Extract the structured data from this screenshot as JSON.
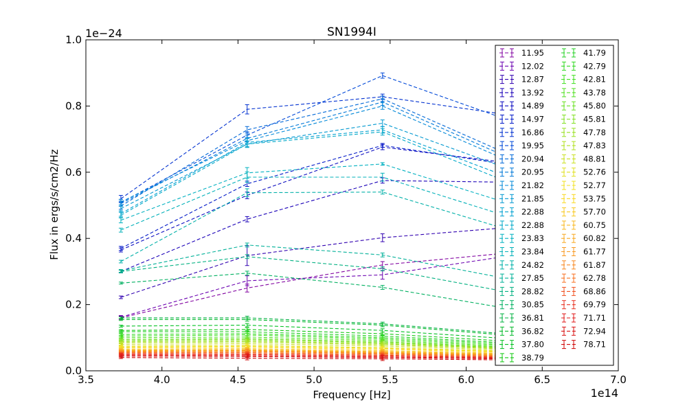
{
  "chart_data": {
    "type": "line",
    "title": "SN1994I",
    "xlabel": "Frequency [Hz]",
    "ylabel": "Flux in ergs/s/cm2/Hz",
    "x_offset_label": "1e14",
    "y_offset_label": "1e−24",
    "xlim": [
      3.5,
      7.0
    ],
    "ylim": [
      0.0,
      1.0
    ],
    "xticks": [
      3.5,
      4.0,
      4.5,
      5.0,
      5.5,
      6.0,
      6.5,
      7.0
    ],
    "yticks": [
      0.0,
      0.2,
      0.4,
      0.6,
      0.8,
      1.0
    ],
    "xtick_labels": [
      "3.5",
      "4.0",
      "4.5",
      "5.0",
      "5.5",
      "6.0",
      "6.5",
      "7.0"
    ],
    "ytick_labels": [
      "0.0",
      "0.2",
      "0.4",
      "0.6",
      "0.8",
      "1.0"
    ],
    "x": [
      3.73,
      4.56,
      5.45,
      6.25
    ],
    "legend_position": "right",
    "grid": false,
    "series": [
      {
        "name": "11.95",
        "color": "#8000a0",
        "values": [
          0.16,
          0.25,
          0.32,
          0.355
        ],
        "err": [
          0.005,
          0.012,
          0.01,
          0.008
        ]
      },
      {
        "name": "12.02",
        "color": "#6a00b0",
        "values": [
          0.162,
          0.272,
          0.29,
          0.345
        ],
        "err": [
          0.005,
          0.015,
          0.013,
          0.008
        ]
      },
      {
        "name": "12.87",
        "color": "#3000b0",
        "values": [
          0.222,
          0.348,
          0.402,
          0.432
        ],
        "err": [
          0.004,
          0.03,
          0.012,
          0.008
        ]
      },
      {
        "name": "13.92",
        "color": "#1a00b8",
        "values": [
          0.3,
          0.458,
          0.575,
          0.57
        ],
        "err": [
          0.004,
          0.008,
          0.008,
          0.006
        ]
      },
      {
        "name": "14.89",
        "color": "#0a0ac0",
        "values": [
          0.365,
          0.53,
          0.676,
          0.63
        ],
        "err": [
          0.006,
          0.01,
          0.008,
          0.008
        ]
      },
      {
        "name": "14.97",
        "color": "#0018c8",
        "values": [
          0.37,
          0.565,
          0.681,
          0.625
        ],
        "err": [
          0.006,
          0.008,
          0.006,
          0.008
        ]
      },
      {
        "name": "16.86",
        "color": "#0030d0",
        "values": [
          0.52,
          0.79,
          0.828,
          0.775
        ],
        "err": [
          0.01,
          0.014,
          0.008,
          0.008
        ]
      },
      {
        "name": "19.95",
        "color": "#0048d8",
        "values": [
          0.508,
          0.712,
          0.892,
          0.762
        ],
        "err": [
          0.01,
          0.01,
          0.008,
          0.008
        ]
      },
      {
        "name": "20.94",
        "color": "#0068d8",
        "values": [
          0.498,
          0.728,
          0.822,
          0.66
        ],
        "err": [
          0.01,
          0.01,
          0.008,
          0.008
        ]
      },
      {
        "name": "20.95",
        "color": "#0078d8",
        "values": [
          0.505,
          0.702,
          0.812,
          0.65
        ],
        "err": [
          0.008,
          0.01,
          0.01,
          0.008
        ]
      },
      {
        "name": "21.82",
        "color": "#0088d8",
        "values": [
          0.51,
          0.695,
          0.8,
          0.64
        ],
        "err": [
          0.008,
          0.01,
          0.01,
          0.008
        ]
      },
      {
        "name": "21.85",
        "color": "#0098d0",
        "values": [
          0.49,
          0.685,
          0.748,
          0.615
        ],
        "err": [
          0.008,
          0.01,
          0.01,
          0.008
        ]
      },
      {
        "name": "22.88",
        "color": "#00a0d0",
        "values": [
          0.475,
          0.69,
          0.728,
          0.59
        ],
        "err": [
          0.008,
          0.012,
          0.01,
          0.008
        ]
      },
      {
        "name": "22.88",
        "color": "#00a8c8",
        "values": [
          0.47,
          0.685,
          0.722,
          0.575
        ],
        "err": [
          0.008,
          0.01,
          0.01,
          0.008
        ]
      },
      {
        "name": "23.83",
        "color": "#00b0c0",
        "values": [
          0.455,
          0.598,
          0.625,
          0.51
        ],
        "err": [
          0.008,
          0.016,
          0.004,
          0.008
        ]
      },
      {
        "name": "23.84",
        "color": "#00b0b8",
        "values": [
          0.425,
          0.585,
          0.585,
          0.47
        ],
        "err": [
          0.006,
          0.016,
          0.012,
          0.008
        ]
      },
      {
        "name": "24.82",
        "color": "#00b0a8",
        "values": [
          0.33,
          0.538,
          0.54,
          0.43
        ],
        "err": [
          0.004,
          0.012,
          0.006,
          0.006
        ]
      },
      {
        "name": "27.85",
        "color": "#00b098",
        "values": [
          0.302,
          0.38,
          0.35,
          0.28
        ],
        "err": [
          0.004,
          0.006,
          0.006,
          0.005
        ]
      },
      {
        "name": "28.82",
        "color": "#00b080",
        "values": [
          0.3,
          0.345,
          0.308,
          0.24
        ],
        "err": [
          0.004,
          0.006,
          0.006,
          0.005
        ]
      },
      {
        "name": "30.85",
        "color": "#00b060",
        "values": [
          0.265,
          0.295,
          0.252,
          0.19
        ],
        "err": [
          0.003,
          0.006,
          0.006,
          0.005
        ]
      },
      {
        "name": "36.81",
        "color": "#00b040",
        "values": [
          0.16,
          0.16,
          0.142,
          0.112
        ],
        "err": [
          0.003,
          0.005,
          0.005,
          0.004
        ]
      },
      {
        "name": "36.82",
        "color": "#00b828",
        "values": [
          0.155,
          0.155,
          0.138,
          0.108
        ],
        "err": [
          0.003,
          0.005,
          0.005,
          0.004
        ]
      },
      {
        "name": "37.80",
        "color": "#00c020",
        "values": [
          0.135,
          0.138,
          0.122,
          0.098
        ],
        "err": [
          0.003,
          0.005,
          0.005,
          0.004
        ]
      },
      {
        "name": "38.79",
        "color": "#10c810",
        "values": [
          0.122,
          0.125,
          0.112,
          0.09
        ],
        "err": [
          0.003,
          0.005,
          0.005,
          0.004
        ]
      },
      {
        "name": "41.79",
        "color": "#20d020",
        "values": [
          0.118,
          0.118,
          0.105,
          0.085
        ],
        "err": [
          0.003,
          0.005,
          0.005,
          0.004
        ]
      },
      {
        "name": "42.79",
        "color": "#30d820",
        "values": [
          0.11,
          0.112,
          0.1,
          0.082
        ],
        "err": [
          0.003,
          0.005,
          0.005,
          0.004
        ]
      },
      {
        "name": "42.81",
        "color": "#40e020",
        "values": [
          0.105,
          0.108,
          0.096,
          0.078
        ],
        "err": [
          0.003,
          0.005,
          0.005,
          0.004
        ]
      },
      {
        "name": "43.78",
        "color": "#50e020",
        "values": [
          0.1,
          0.102,
          0.092,
          0.075
        ],
        "err": [
          0.003,
          0.005,
          0.005,
          0.004
        ]
      },
      {
        "name": "45.80",
        "color": "#68e020",
        "values": [
          0.095,
          0.097,
          0.088,
          0.072
        ],
        "err": [
          0.003,
          0.005,
          0.005,
          0.004
        ]
      },
      {
        "name": "45.81",
        "color": "#80e020",
        "values": [
          0.092,
          0.094,
          0.085,
          0.07
        ],
        "err": [
          0.003,
          0.005,
          0.005,
          0.004
        ]
      },
      {
        "name": "47.78",
        "color": "#98e020",
        "values": [
          0.088,
          0.09,
          0.082,
          0.068
        ],
        "err": [
          0.003,
          0.005,
          0.005,
          0.004
        ]
      },
      {
        "name": "47.83",
        "color": "#b0e020",
        "values": [
          0.085,
          0.087,
          0.079,
          0.066
        ],
        "err": [
          0.003,
          0.005,
          0.005,
          0.004
        ]
      },
      {
        "name": "48.81",
        "color": "#c8e020",
        "values": [
          0.08,
          0.082,
          0.075,
          0.063
        ],
        "err": [
          0.003,
          0.005,
          0.005,
          0.004
        ]
      },
      {
        "name": "52.76",
        "color": "#e0e020",
        "values": [
          0.075,
          0.077,
          0.07,
          0.06
        ],
        "err": [
          0.003,
          0.005,
          0.005,
          0.004
        ]
      },
      {
        "name": "52.77",
        "color": "#f0e020",
        "values": [
          0.072,
          0.074,
          0.068,
          0.058
        ],
        "err": [
          0.003,
          0.005,
          0.005,
          0.004
        ]
      },
      {
        "name": "53.75",
        "color": "#f8d820",
        "values": [
          0.07,
          0.071,
          0.065,
          0.056
        ],
        "err": [
          0.003,
          0.005,
          0.005,
          0.004
        ]
      },
      {
        "name": "57.70",
        "color": "#f8c820",
        "values": [
          0.066,
          0.067,
          0.061,
          0.053
        ],
        "err": [
          0.003,
          0.005,
          0.005,
          0.004
        ]
      },
      {
        "name": "60.75",
        "color": "#f8b820",
        "values": [
          0.063,
          0.064,
          0.058,
          0.051
        ],
        "err": [
          0.003,
          0.005,
          0.005,
          0.004
        ]
      },
      {
        "name": "60.82",
        "color": "#f8a820",
        "values": [
          0.061,
          0.062,
          0.056,
          0.049
        ],
        "err": [
          0.003,
          0.005,
          0.005,
          0.004
        ]
      },
      {
        "name": "61.77",
        "color": "#f89820",
        "values": [
          0.059,
          0.06,
          0.054,
          0.047
        ],
        "err": [
          0.003,
          0.005,
          0.005,
          0.004
        ]
      },
      {
        "name": "61.87",
        "color": "#f88820",
        "values": [
          0.057,
          0.058,
          0.052,
          0.046
        ],
        "err": [
          0.003,
          0.005,
          0.005,
          0.004
        ]
      },
      {
        "name": "62.78",
        "color": "#f87020",
        "values": [
          0.055,
          0.055,
          0.05,
          0.044
        ],
        "err": [
          0.003,
          0.005,
          0.005,
          0.004
        ]
      },
      {
        "name": "68.86",
        "color": "#f05020",
        "values": [
          0.052,
          0.052,
          0.047,
          0.042
        ],
        "err": [
          0.003,
          0.005,
          0.005,
          0.004
        ]
      },
      {
        "name": "69.79",
        "color": "#e83020",
        "values": [
          0.05,
          0.049,
          0.045,
          0.04
        ],
        "err": [
          0.003,
          0.005,
          0.005,
          0.004
        ]
      },
      {
        "name": "71.71",
        "color": "#e01818",
        "values": [
          0.047,
          0.046,
          0.042,
          0.038
        ],
        "err": [
          0.003,
          0.005,
          0.005,
          0.004
        ]
      },
      {
        "name": "72.94",
        "color": "#d81010",
        "values": [
          0.044,
          0.043,
          0.04,
          0.036
        ],
        "err": [
          0.003,
          0.005,
          0.005,
          0.004
        ]
      },
      {
        "name": "78.71",
        "color": "#d00808",
        "values": [
          0.04,
          0.038,
          0.036,
          0.033
        ],
        "err": [
          0.003,
          0.005,
          0.005,
          0.004
        ]
      }
    ]
  }
}
